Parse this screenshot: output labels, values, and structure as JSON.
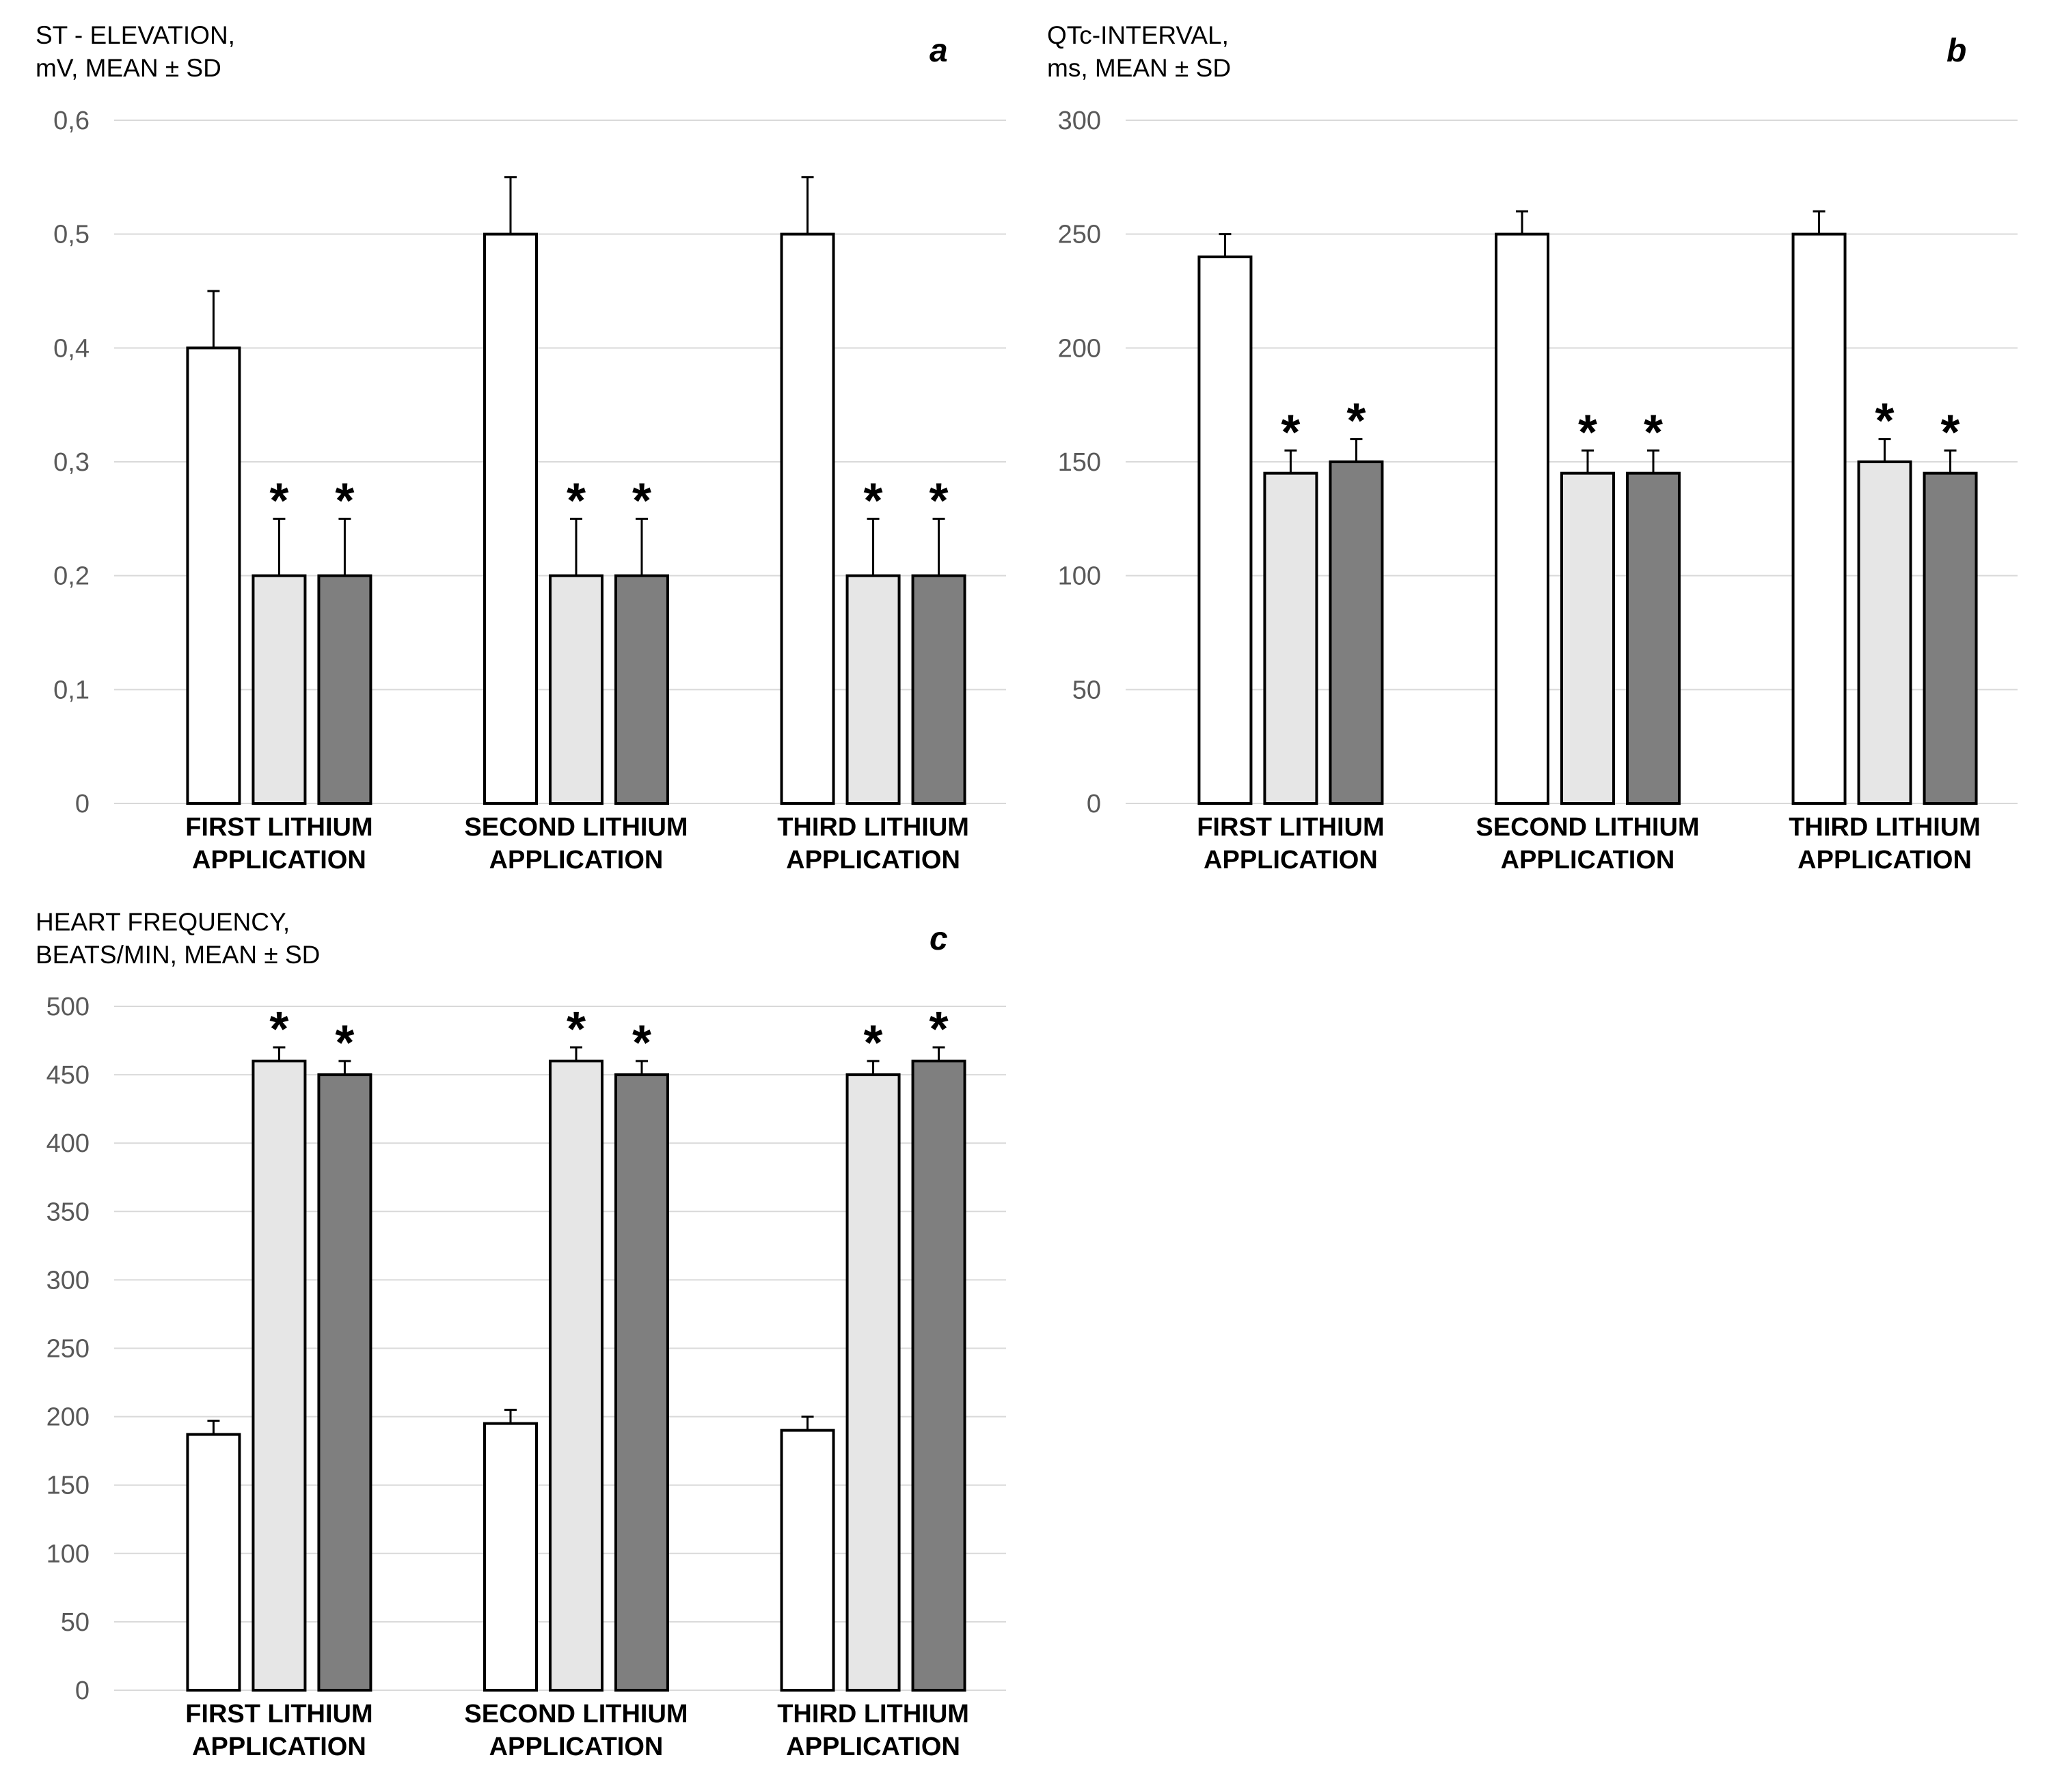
{
  "chart_data": [
    {
      "panel_letter": "a",
      "type": "bar",
      "title_lines": [
        "ST - ELEVATION,",
        "mV, MEAN ± SD"
      ],
      "categories": [
        [
          "FIRST LITHIUM",
          "APPLICATION"
        ],
        [
          "SECOND LITHIUM",
          "APPLICATION"
        ],
        [
          "THIRD LITHIUM",
          "APPLICATION"
        ]
      ],
      "ylim": [
        0,
        0.6
      ],
      "yticks": [
        0,
        0.1,
        0.2,
        0.3,
        0.4,
        0.5,
        0.6
      ],
      "ytick_labels": [
        "0",
        "0,1",
        "0,2",
        "0,3",
        "0,4",
        "0,5",
        "0,6"
      ],
      "grid": true,
      "legend": "none",
      "series": [
        {
          "fill": "#ffffff",
          "values": [
            0.4,
            0.5,
            0.5
          ],
          "errors": [
            0.05,
            0.05,
            0.05
          ],
          "significant": [
            false,
            false,
            false
          ]
        },
        {
          "fill": "#e6e6e6",
          "values": [
            0.2,
            0.2,
            0.2
          ],
          "errors": [
            0.05,
            0.05,
            0.05
          ],
          "significant": [
            true,
            true,
            true
          ]
        },
        {
          "fill": "#7f7f7f",
          "values": [
            0.2,
            0.2,
            0.2
          ],
          "errors": [
            0.05,
            0.05,
            0.05
          ],
          "significant": [
            true,
            true,
            true
          ]
        }
      ]
    },
    {
      "panel_letter": "b",
      "type": "bar",
      "title_lines": [
        "QTc-INTERVAL,",
        "ms, MEAN ± SD"
      ],
      "categories": [
        [
          "FIRST LITHIUM",
          "APPLICATION"
        ],
        [
          "SECOND LITHIUM",
          "APPLICATION"
        ],
        [
          "THIRD LITHIUM",
          "APPLICATION"
        ]
      ],
      "ylim": [
        0,
        300
      ],
      "yticks": [
        0,
        50,
        100,
        150,
        200,
        250,
        300
      ],
      "ytick_labels": [
        "0",
        "50",
        "100",
        "150",
        "200",
        "250",
        "300"
      ],
      "grid": true,
      "legend": "none",
      "series": [
        {
          "fill": "#ffffff",
          "values": [
            240,
            250,
            250
          ],
          "errors": [
            10,
            10,
            10
          ],
          "significant": [
            false,
            false,
            false
          ]
        },
        {
          "fill": "#e6e6e6",
          "values": [
            145,
            145,
            150
          ],
          "errors": [
            10,
            10,
            10
          ],
          "significant": [
            true,
            true,
            true
          ]
        },
        {
          "fill": "#7f7f7f",
          "values": [
            150,
            145,
            145
          ],
          "errors": [
            10,
            10,
            10
          ],
          "significant": [
            true,
            true,
            true
          ]
        }
      ]
    },
    {
      "panel_letter": "c",
      "type": "bar",
      "title_lines": [
        "HEART FREQUENCY,",
        "BEATS/MIN, MEAN ± SD"
      ],
      "categories": [
        [
          "FIRST LITHIUM",
          "APPLICATION"
        ],
        [
          "SECOND LITHIUM",
          "APPLICATION"
        ],
        [
          "THIRD LITHIUM",
          "APPLICATION"
        ]
      ],
      "ylim": [
        0,
        500
      ],
      "yticks": [
        0,
        50,
        100,
        150,
        200,
        250,
        300,
        350,
        400,
        450,
        500
      ],
      "ytick_labels": [
        "0",
        "50",
        "100",
        "150",
        "200",
        "250",
        "300",
        "350",
        "400",
        "450",
        "500"
      ],
      "grid": true,
      "legend": "none",
      "series": [
        {
          "fill": "#ffffff",
          "values": [
            187,
            195,
            190
          ],
          "errors": [
            10,
            10,
            10
          ],
          "significant": [
            false,
            false,
            false
          ]
        },
        {
          "fill": "#e6e6e6",
          "values": [
            460,
            460,
            450
          ],
          "errors": [
            10,
            10,
            10
          ],
          "significant": [
            true,
            true,
            true
          ]
        },
        {
          "fill": "#7f7f7f",
          "values": [
            450,
            450,
            460
          ],
          "errors": [
            10,
            10,
            10
          ],
          "significant": [
            true,
            true,
            true
          ]
        }
      ]
    }
  ],
  "significance_marker": "*",
  "colors": {
    "gridline": "#d9d9d9",
    "bar_outline": "#000000",
    "tick_text": "#595959",
    "title_text": "#000000",
    "category_text": "#000000"
  }
}
